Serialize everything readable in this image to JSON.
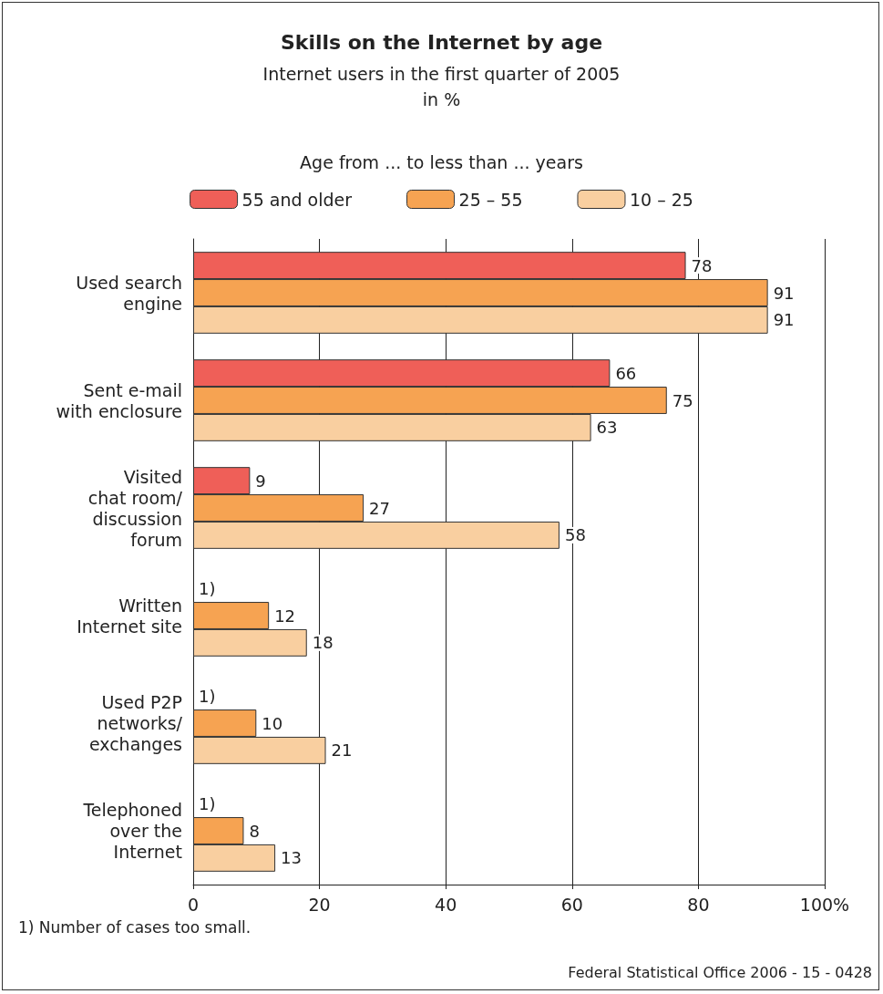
{
  "chart_data": {
    "type": "bar",
    "orientation": "horizontal",
    "title": "Skills on the Internet by age",
    "subtitle": "Internet users in the first quarter of 2005\nin %",
    "legend_title": "Age from ... to less than ... years",
    "legend": "top",
    "categories": [
      "Used search\nengine",
      "Sent e-mail\nwith enclosure",
      "Visited\nchat room/\ndiscussion\nforum",
      "Written\nInternet site",
      "Used P2P\nnetworks/\nexchanges",
      "Telephoned\nover the\nInternet"
    ],
    "series": [
      {
        "name": "55 and older",
        "color": "#ef5f58",
        "values": [
          78,
          66,
          9,
          null,
          null,
          null
        ],
        "value_labels": [
          "78",
          "66",
          "9",
          "1)",
          "1)",
          "1)"
        ]
      },
      {
        "name": "25 – 55",
        "color": "#f6a352",
        "values": [
          91,
          75,
          27,
          12,
          10,
          8
        ],
        "value_labels": [
          "91",
          "75",
          "27",
          "12",
          "10",
          "8"
        ]
      },
      {
        "name": "10 – 25",
        "color": "#f9cfa0",
        "values": [
          91,
          63,
          58,
          18,
          21,
          13
        ],
        "value_labels": [
          "91",
          "63",
          "58",
          "18",
          "21",
          "13"
        ]
      }
    ],
    "xlim": [
      0,
      100
    ],
    "xticks": [
      0,
      20,
      40,
      60,
      80,
      {
        "value": 100,
        "label": "100%"
      }
    ],
    "grid": "x",
    "annotations": [
      "1) Number of cases too small.",
      "Federal Statistical Office 2006 - 15 - 0428"
    ]
  }
}
